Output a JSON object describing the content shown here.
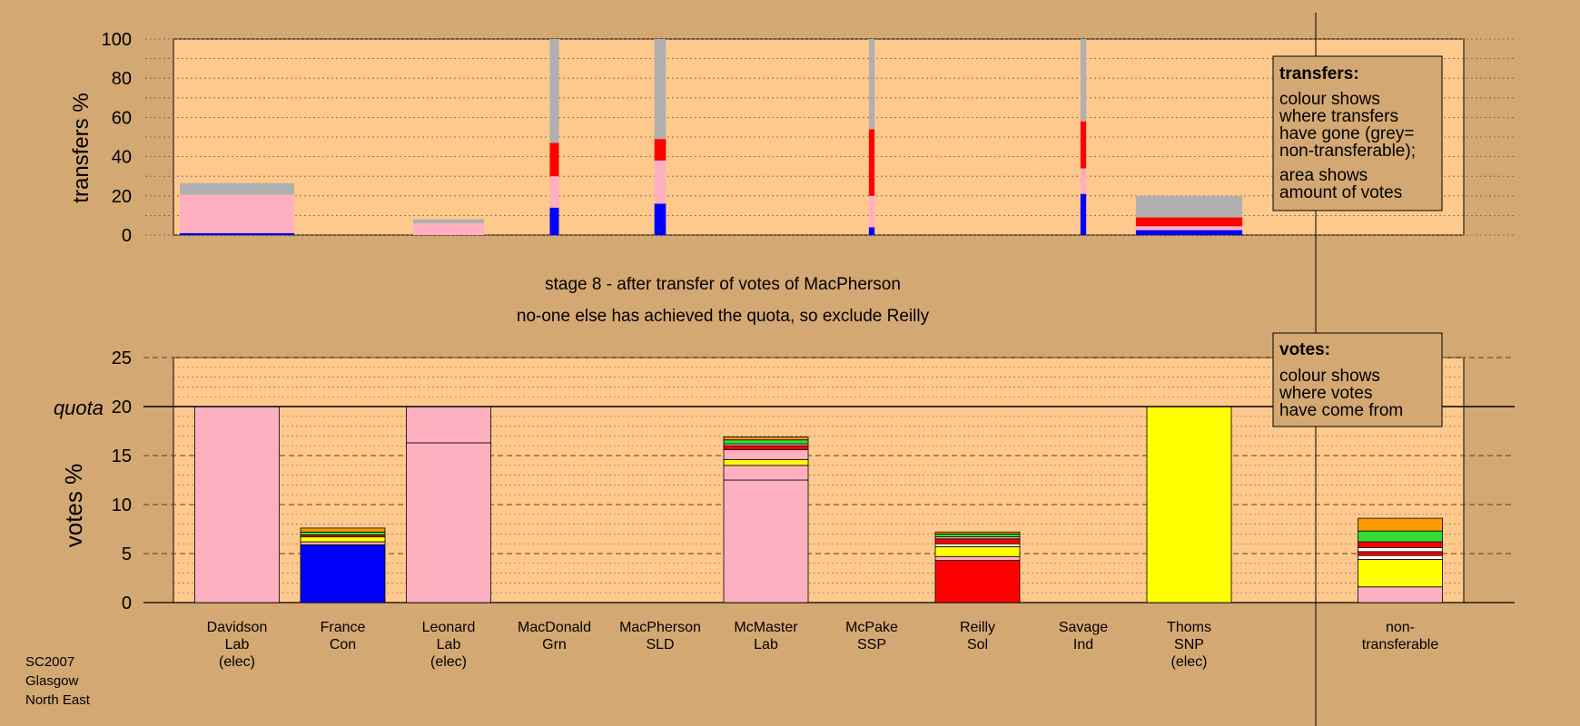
{
  "colors": {
    "background": "#d4a873",
    "plot_bg": "#fec98d",
    "Lab": "#ffb0c0",
    "Con": "#0000ff",
    "SNP": "#ffff00",
    "Sol": "#ff0000",
    "Grn": "#33dd33",
    "SLD": "#ff9900",
    "SSP": "#cc0000",
    "Ind": "#ffffff",
    "nontransferable": "#b0b0b0"
  },
  "header": {
    "stage_line": "stage 8 - after transfer of votes of MacPherson",
    "note_line": "no-one else has achieved the quota, so exclude Reilly"
  },
  "footer": {
    "election": "SC2007",
    "city": "Glasgow",
    "ward": "North East"
  },
  "legend_transfers": {
    "title": "transfers:",
    "lines1": [
      "colour shows",
      "where transfers",
      "have gone (grey=",
      "non-transferable);"
    ],
    "lines2": [
      "area shows",
      "amount of votes"
    ]
  },
  "legend_votes": {
    "title": "votes:",
    "lines": [
      "colour shows",
      "where votes",
      "have come from"
    ]
  },
  "chart_data": [
    {
      "type": "bar",
      "ylabel": "transfers %",
      "ylim": [
        0,
        100
      ],
      "yticks": [
        "0",
        "20",
        "40",
        "60",
        "80",
        "100"
      ],
      "bars": [
        {
          "candidate": "Davidson",
          "width_share": 1.0,
          "segments": [
            {
              "party": "Con",
              "value": 1
            },
            {
              "party": "Lab",
              "value": 19.5
            },
            {
              "party": "nontransferable",
              "value": 6
            }
          ]
        },
        {
          "candidate": "Leonard",
          "width_share": 0.62,
          "segments": [
            {
              "party": "Lab",
              "value": 6
            },
            {
              "party": "nontransferable",
              "value": 2
            }
          ]
        },
        {
          "candidate": "MacDonald",
          "width_share": 0.08,
          "segments": [
            {
              "party": "Con",
              "value": 14
            },
            {
              "party": "Lab",
              "value": 16
            },
            {
              "party": "Sol",
              "value": 17
            },
            {
              "party": "nontransferable",
              "value": 53
            }
          ]
        },
        {
          "candidate": "MacPherson",
          "width_share": 0.1,
          "segments": [
            {
              "party": "Con",
              "value": 16
            },
            {
              "party": "Lab",
              "value": 22
            },
            {
              "party": "Sol",
              "value": 11
            },
            {
              "party": "nontransferable",
              "value": 51
            }
          ]
        },
        {
          "candidate": "McPake",
          "width_share": 0.05,
          "segments": [
            {
              "party": "Con",
              "value": 4
            },
            {
              "party": "Lab",
              "value": 16
            },
            {
              "party": "Sol",
              "value": 34
            },
            {
              "party": "nontransferable",
              "value": 46
            }
          ]
        },
        {
          "candidate": "Savage",
          "width_share": 0.05,
          "segments": [
            {
              "party": "Con",
              "value": 21
            },
            {
              "party": "Lab",
              "value": 13
            },
            {
              "party": "Sol",
              "value": 24
            },
            {
              "party": "nontransferable",
              "value": 42
            }
          ]
        },
        {
          "candidate": "Thoms",
          "width_share": 0.93,
          "segments": [
            {
              "party": "Con",
              "value": 2.5
            },
            {
              "party": "Lab",
              "value": 2
            },
            {
              "party": "Sol",
              "value": 4.5
            },
            {
              "party": "nontransferable",
              "value": 11
            }
          ]
        }
      ]
    },
    {
      "type": "bar",
      "ylabel": "votes %",
      "ylim": [
        0,
        25
      ],
      "yticks": [
        "0",
        "5",
        "10",
        "15",
        "20",
        "25"
      ],
      "quota": 20,
      "quota_label": "quota",
      "columns": [
        {
          "name": "Davidson",
          "party": "Lab",
          "note": "(elec)",
          "segments": [
            {
              "party": "Lab",
              "value": 20
            }
          ]
        },
        {
          "name": "France",
          "party": "Con",
          "note": "",
          "segments": [
            {
              "party": "Con",
              "value": 5.9
            },
            {
              "party": "Lab",
              "value": 0.3
            },
            {
              "party": "SNP",
              "value": 0.5
            },
            {
              "party": "Sol",
              "value": 0.2
            },
            {
              "party": "Grn",
              "value": 0.3
            },
            {
              "party": "SLD",
              "value": 0.4
            }
          ]
        },
        {
          "name": "Leonard",
          "party": "Lab",
          "note": "(elec)",
          "segments": [
            {
              "party": "Lab",
              "value": 16.3
            },
            {
              "party": "Lab",
              "value": 3.7
            }
          ]
        },
        {
          "name": "MacDonald",
          "party": "Grn",
          "note": "",
          "segments": []
        },
        {
          "name": "MacPherson",
          "party": "SLD",
          "note": "",
          "segments": []
        },
        {
          "name": "McMaster",
          "party": "Lab",
          "note": "",
          "segments": [
            {
              "party": "Lab",
              "value": 12.5
            },
            {
              "party": "Lab",
              "value": 1.5
            },
            {
              "party": "SNP",
              "value": 0.6
            },
            {
              "party": "Lab",
              "value": 1
            },
            {
              "party": "Sol",
              "value": 0.4
            },
            {
              "party": "Lab",
              "value": 0.2
            },
            {
              "party": "Grn",
              "value": 0.4
            },
            {
              "party": "SLD",
              "value": 0.3
            }
          ]
        },
        {
          "name": "McPake",
          "party": "SSP",
          "note": "",
          "segments": []
        },
        {
          "name": "Reilly",
          "party": "Sol",
          "note": "",
          "segments": [
            {
              "party": "Sol",
              "value": 4.3
            },
            {
              "party": "Lab",
              "value": 0.4
            },
            {
              "party": "SNP",
              "value": 1
            },
            {
              "party": "Ind",
              "value": 0.3
            },
            {
              "party": "Sol",
              "value": 0.5
            },
            {
              "party": "Lab",
              "value": 0.2
            },
            {
              "party": "Grn",
              "value": 0.3
            },
            {
              "party": "SLD",
              "value": 0.2
            }
          ]
        },
        {
          "name": "Savage",
          "party": "Ind",
          "note": "",
          "segments": []
        },
        {
          "name": "Thoms",
          "party": "SNP",
          "note": "(elec)",
          "segments": [
            {
              "party": "SNP",
              "value": 20
            }
          ]
        },
        {
          "name": "non-",
          "party": "transferable",
          "note": "",
          "segments": [
            {
              "party": "Lab",
              "value": 1.6
            },
            {
              "party": "SNP",
              "value": 2.8
            },
            {
              "party": "Ind",
              "value": 0.4
            },
            {
              "party": "Sol",
              "value": 0.4
            },
            {
              "party": "Ind",
              "value": 0.4
            },
            {
              "party": "Sol",
              "value": 0.6
            },
            {
              "party": "Grn",
              "value": 1.1
            },
            {
              "party": "SLD",
              "value": 1.3
            }
          ]
        }
      ]
    }
  ]
}
